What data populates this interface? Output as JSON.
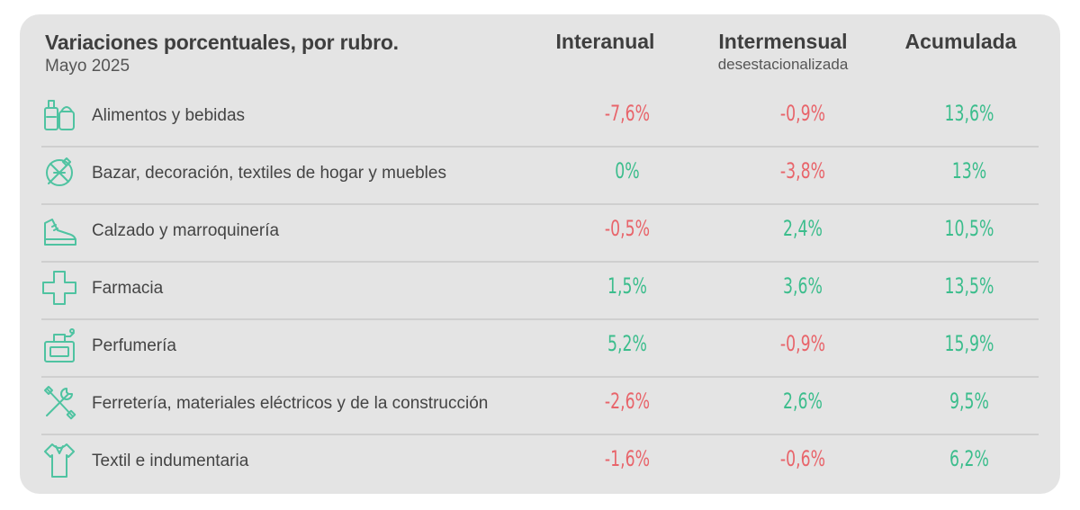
{
  "header": {
    "title": "Variaciones porcentuales, por rubro.",
    "subtitle": "Mayo 2025",
    "col_interanual": "Interanual",
    "col_intermensual": "Intermensual",
    "col_intermensual_sub": "desestacionalizada",
    "col_acumulada": "Acumulada"
  },
  "colors": {
    "negative": "#e8646a",
    "positive": "#3bbd8c",
    "icon": "#4fc3a1",
    "card": "#e4e4e4"
  },
  "rows": [
    {
      "icon": "groceries-icon",
      "label": "Alimentos y bebidas",
      "interanual": "-7,6%",
      "intermensual": "-0,9%",
      "acumulada": "13,6%"
    },
    {
      "icon": "home-goods-icon",
      "label": "Bazar, decoración, textiles de hogar y muebles",
      "interanual": "0%",
      "intermensual": "-3,8%",
      "acumulada": "13%"
    },
    {
      "icon": "shoe-icon",
      "label": "Calzado y marroquinería",
      "interanual": "-0,5%",
      "intermensual": "2,4%",
      "acumulada": "10,5%"
    },
    {
      "icon": "pharmacy-cross-icon",
      "label": "Farmacia",
      "interanual": "1,5%",
      "intermensual": "3,6%",
      "acumulada": "13,5%"
    },
    {
      "icon": "perfume-icon",
      "label": "Perfumería",
      "interanual": "5,2%",
      "intermensual": "-0,9%",
      "acumulada": "15,9%"
    },
    {
      "icon": "tools-icon",
      "label": "Ferretería, materiales eléctricos y de la construcción",
      "interanual": "-2,6%",
      "intermensual": "2,6%",
      "acumulada": "9,5%"
    },
    {
      "icon": "shirt-icon",
      "label": "Textil e indumentaria",
      "interanual": "-1,6%",
      "intermensual": "-0,6%",
      "acumulada": "6,2%"
    }
  ],
  "chart_data": {
    "type": "table",
    "title": "Variaciones porcentuales, por rubro.",
    "subtitle": "Mayo 2025",
    "columns": [
      "Interanual",
      "Intermensual desestacionalizada",
      "Acumulada"
    ],
    "categories": [
      "Alimentos y bebidas",
      "Bazar, decoración, textiles de hogar y muebles",
      "Calzado y marroquinería",
      "Farmacia",
      "Perfumería",
      "Ferretería, materiales eléctricos y de la construcción",
      "Textil e indumentaria"
    ],
    "series": [
      {
        "name": "Interanual",
        "values": [
          -7.6,
          0,
          -0.5,
          1.5,
          5.2,
          -2.6,
          -1.6
        ]
      },
      {
        "name": "Intermensual desestacionalizada",
        "values": [
          -0.9,
          -3.8,
          2.4,
          3.6,
          -0.9,
          2.6,
          -0.6
        ]
      },
      {
        "name": "Acumulada",
        "values": [
          13.6,
          13,
          10.5,
          13.5,
          15.9,
          9.5,
          6.2
        ]
      }
    ],
    "unit": "%"
  }
}
